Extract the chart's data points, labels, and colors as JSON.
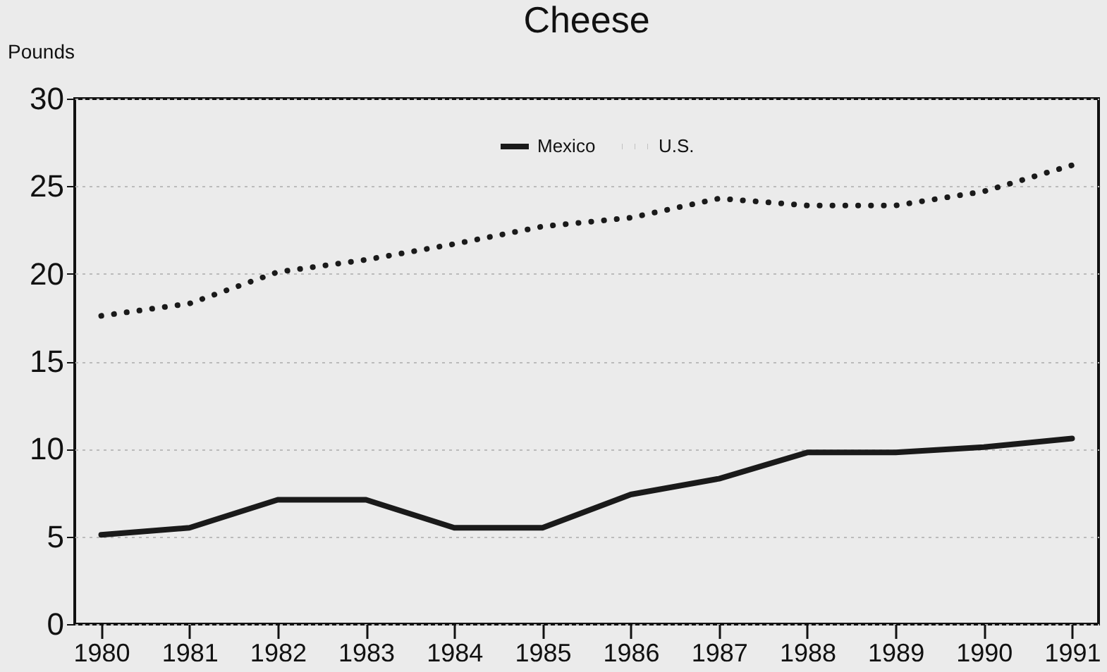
{
  "chart_data": {
    "type": "line",
    "title": "Cheese",
    "ylabel": "Pounds",
    "categories": [
      "1980",
      "1981",
      "1982",
      "1983",
      "1984",
      "1985",
      "1986",
      "1987",
      "1988",
      "1989",
      "1990",
      "1991"
    ],
    "series": [
      {
        "name": "Mexico",
        "color": "#1a1a1a",
        "line_style": "solid",
        "values": [
          5.1,
          5.5,
          7.1,
          7.1,
          5.5,
          5.5,
          7.4,
          8.3,
          9.8,
          9.8,
          10.1,
          10.6
        ]
      },
      {
        "name": "U.S.",
        "color": "#1a1a1a",
        "line_style": "dotted",
        "values": [
          17.6,
          18.3,
          20.1,
          20.8,
          21.7,
          22.7,
          23.2,
          24.3,
          23.9,
          23.9,
          24.7,
          26.2
        ]
      }
    ],
    "ylim": [
      0,
      30
    ],
    "yticks": [
      0,
      5,
      10,
      15,
      20,
      25,
      30
    ],
    "grid": "y",
    "legend": "top"
  }
}
